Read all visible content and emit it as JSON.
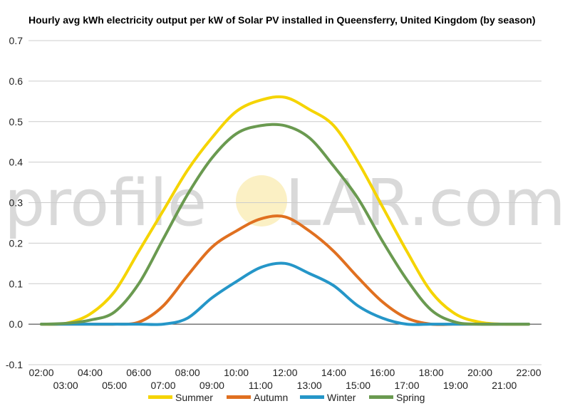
{
  "watermark": {
    "left": "profile",
    "sun_letter": "S",
    "right": "LAR.com"
  },
  "chart_data": {
    "type": "line",
    "title": "Hourly avg kWh electricity output per kW of Solar PV installed in Queensferry, United Kingdom (by season)",
    "xlabel": "",
    "ylabel": "",
    "ylim": [
      -0.1,
      0.7
    ],
    "yticks": [
      "-0.1",
      "0.0",
      "0.1",
      "0.2",
      "0.3",
      "0.4",
      "0.5",
      "0.6",
      "0.7"
    ],
    "grid": true,
    "legend_position": "bottom",
    "x": [
      "02:00",
      "03:00",
      "04:00",
      "05:00",
      "06:00",
      "07:00",
      "08:00",
      "09:00",
      "10:00",
      "11:00",
      "12:00",
      "13:00",
      "14:00",
      "15:00",
      "16:00",
      "17:00",
      "18:00",
      "19:00",
      "20:00",
      "21:00",
      "22:00"
    ],
    "series": [
      {
        "name": "Summer",
        "color": "#f5d400",
        "values": [
          0.0,
          0.002,
          0.025,
          0.08,
          0.18,
          0.28,
          0.38,
          0.46,
          0.525,
          0.553,
          0.56,
          0.53,
          0.49,
          0.4,
          0.29,
          0.18,
          0.08,
          0.025,
          0.005,
          0.0,
          0.0
        ]
      },
      {
        "name": "Autumn",
        "color": "#e07020",
        "values": [
          0.0,
          0.0,
          0.0,
          0.0,
          0.005,
          0.045,
          0.12,
          0.19,
          0.23,
          0.26,
          0.265,
          0.23,
          0.18,
          0.115,
          0.055,
          0.015,
          0.0,
          0.0,
          0.0,
          0.0,
          0.0
        ]
      },
      {
        "name": "Winter",
        "color": "#2596c8",
        "values": [
          0.0,
          0.0,
          0.0,
          0.0,
          0.0,
          0.0,
          0.015,
          0.065,
          0.105,
          0.14,
          0.15,
          0.125,
          0.095,
          0.045,
          0.015,
          0.0,
          0.0,
          0.0,
          0.0,
          0.0,
          0.0
        ]
      },
      {
        "name": "Spring",
        "color": "#6a9a50",
        "values": [
          0.0,
          0.002,
          0.01,
          0.03,
          0.1,
          0.21,
          0.32,
          0.41,
          0.47,
          0.49,
          0.49,
          0.46,
          0.39,
          0.31,
          0.205,
          0.11,
          0.035,
          0.005,
          0.0,
          0.0,
          0.0
        ]
      }
    ]
  }
}
